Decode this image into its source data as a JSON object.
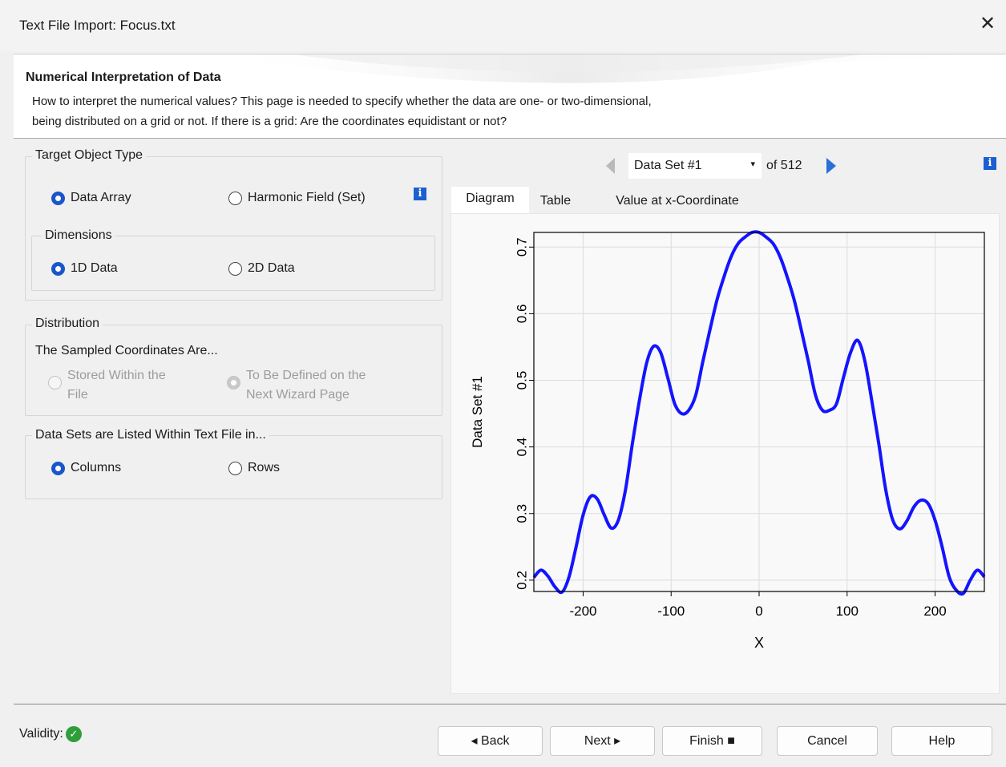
{
  "window": {
    "title": "Text File Import: Focus.txt",
    "close_glyph": "✕"
  },
  "header": {
    "title": "Numerical Interpretation of Data",
    "description_line1": "How to interpret the numerical values? This page is needed to specify whether the data are one- or two-dimensional,",
    "description_line2": "being distributed on a grid or not. If there is a grid: Are the coordinates equidistant or not?"
  },
  "target_object_type": {
    "title": "Target Object Type",
    "options": [
      {
        "label": "Data Array",
        "selected": true
      },
      {
        "label": "Harmonic Field (Set)",
        "selected": false
      }
    ],
    "info_glyph": "i",
    "dimensions": {
      "title": "Dimensions",
      "options": [
        {
          "label": "1D Data",
          "selected": true
        },
        {
          "label": "2D Data",
          "selected": false
        }
      ]
    }
  },
  "distribution": {
    "title": "Distribution",
    "subtitle": "The Sampled Coordinates Are...",
    "options": [
      {
        "label_line1": "Stored Within the",
        "label_line2": "File",
        "selected": false,
        "disabled": true
      },
      {
        "label_line1": "To Be Defined on the",
        "label_line2": "Next Wizard Page",
        "selected": true,
        "disabled": true
      }
    ]
  },
  "data_sets_listed": {
    "title": "Data Sets are Listed Within Text File in...",
    "options": [
      {
        "label": "Columns",
        "selected": true
      },
      {
        "label": "Rows",
        "selected": false
      }
    ]
  },
  "navigator": {
    "selected": "Data Set #1",
    "of_label": "of 512",
    "info_glyph": "i",
    "dropdown_glyph": "▾"
  },
  "tabs": [
    {
      "label": "Diagram",
      "active": true
    },
    {
      "label": "Table",
      "active": false
    },
    {
      "label": "Value at x-Coordinate",
      "active": false
    }
  ],
  "chart_data": {
    "type": "line",
    "xlabel": "X",
    "ylabel": "Data Set #1",
    "xlim": [
      -256,
      256
    ],
    "ylim": [
      0.183,
      0.722
    ],
    "xticks": [
      -200,
      -100,
      0,
      100,
      200
    ],
    "yticks": [
      0.2,
      0.3,
      0.4,
      0.5,
      0.6,
      0.7
    ],
    "xtick_labels": [
      "-200",
      "-100",
      "0",
      "100",
      "200"
    ],
    "ytick_labels": [
      "0.2",
      "0.3",
      "0.4",
      "0.5",
      "0.6",
      "0.7"
    ],
    "grid": true,
    "line_color": "#1414ff",
    "series": [
      {
        "x": [
          -256,
          -248,
          -240,
          -232,
          -224,
          -216,
          -208,
          -200,
          -192,
          -184,
          -176,
          -168,
          -160,
          -152,
          -144,
          -136,
          -128,
          -120,
          -112,
          -104,
          -96,
          -88,
          -80,
          -72,
          -64,
          -56,
          -48,
          -40,
          -32,
          -24,
          -16,
          -8,
          0,
          8,
          16,
          24,
          32,
          40,
          48,
          56,
          64,
          72,
          80,
          88,
          96,
          104,
          112,
          120,
          128,
          136,
          144,
          152,
          160,
          168,
          176,
          184,
          192,
          200,
          208,
          216,
          224,
          232,
          240,
          248,
          256
        ],
        "y": [
          0.204,
          0.215,
          0.206,
          0.19,
          0.182,
          0.205,
          0.25,
          0.298,
          0.325,
          0.322,
          0.298,
          0.278,
          0.29,
          0.335,
          0.405,
          0.47,
          0.525,
          0.551,
          0.542,
          0.505,
          0.465,
          0.45,
          0.455,
          0.478,
          0.528,
          0.575,
          0.62,
          0.655,
          0.685,
          0.705,
          0.715,
          0.722,
          0.722,
          0.715,
          0.705,
          0.685,
          0.655,
          0.62,
          0.575,
          0.528,
          0.478,
          0.455,
          0.455,
          0.465,
          0.505,
          0.542,
          0.56,
          0.53,
          0.47,
          0.405,
          0.335,
          0.29,
          0.277,
          0.289,
          0.31,
          0.32,
          0.315,
          0.29,
          0.25,
          0.205,
          0.185,
          0.18,
          0.2,
          0.215,
          0.205
        ]
      }
    ]
  },
  "footer": {
    "validity_label": "Validity:",
    "validity_glyph": "✓",
    "buttons": {
      "back": "◂ Back",
      "next": "Next ▸",
      "finish": "Finish ■",
      "cancel": "Cancel",
      "help": "Help"
    }
  }
}
